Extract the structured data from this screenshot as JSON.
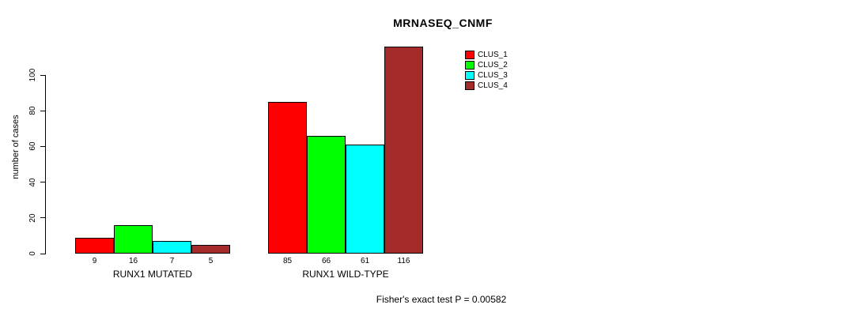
{
  "chart_data": {
    "type": "bar",
    "title": "MRNASEQ_CNMF",
    "categories": [
      "RUNX1 MUTATED",
      "RUNX1 WILD-TYPE"
    ],
    "series": [
      {
        "name": "CLUS_1",
        "color": "#FF0000",
        "values": [
          9,
          85
        ]
      },
      {
        "name": "CLUS_2",
        "color": "#00FF00",
        "values": [
          16,
          66
        ]
      },
      {
        "name": "CLUS_3",
        "color": "#00FFFF",
        "values": [
          7,
          61
        ]
      },
      {
        "name": "CLUS_4",
        "color": "#A52A2A",
        "values": [
          5,
          116
        ]
      }
    ],
    "ylabel": "number of cases",
    "xlabel": "",
    "yticks": [
      0,
      20,
      40,
      60,
      80,
      100
    ],
    "ylim": [
      0,
      100
    ],
    "bar_value_labels": true,
    "legend_position": "top-right",
    "grid": false,
    "annotation": "Fisher's exact test P = 0.00582"
  },
  "footer": {
    "text": "Fisher's exact test P = 0.00582"
  }
}
